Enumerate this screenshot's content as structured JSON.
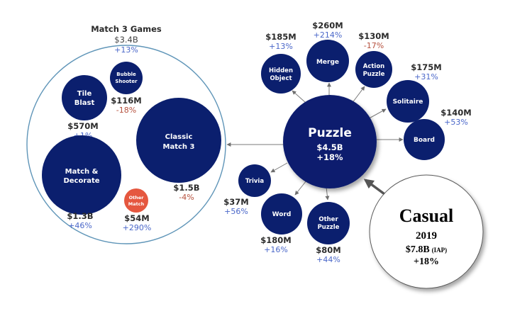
{
  "colors": {
    "bubble": "#0b1f6e",
    "highlight": "#e5573f",
    "link": "#8a8a8a",
    "group_outline": "#5f95b8",
    "positive": "#4a67c9",
    "negative": "#b6513e"
  },
  "match3": {
    "title": "Match 3 Games",
    "value": "$3.4B",
    "change": "+13%"
  },
  "bubbles": {
    "tile_blast": {
      "line1": "Tile",
      "line2": "Blast",
      "value": "$570M",
      "change": "+1%"
    },
    "bubble_shooter": {
      "line1": "Bubble",
      "line2": "Shooter",
      "value": "$116M",
      "change": "-18%"
    },
    "classic_match3": {
      "line1": "Classic",
      "line2": "Match 3",
      "value": "$1.5B",
      "change": "-4%"
    },
    "match_decorate": {
      "line1": "Match &",
      "line2": "Decorate",
      "value": "$1.3B",
      "change": "+46%"
    },
    "other_match": {
      "line1": "Other",
      "line2": "Match",
      "value": "$54M",
      "change": "+290%"
    },
    "hidden_object": {
      "line1": "Hidden",
      "line2": "Object",
      "value": "$185M",
      "change": "+13%"
    },
    "merge": {
      "label": "Merge",
      "value": "$260M",
      "change": "+214%"
    },
    "action_puzzle": {
      "line1": "Action",
      "line2": "Puzzle",
      "value": "$130M",
      "change": "-17%"
    },
    "solitaire": {
      "label": "Solitaire",
      "value": "$175M",
      "change": "+31%"
    },
    "board": {
      "label": "Board",
      "value": "$140M",
      "change": "+53%"
    },
    "trivia": {
      "label": "Trivia",
      "value": "$37M",
      "change": "+56%"
    },
    "word": {
      "label": "Word",
      "value": "$180M",
      "change": "+16%"
    },
    "other_puzzle": {
      "line1": "Other",
      "line2": "Puzzle",
      "value": "$80M",
      "change": "+44%"
    }
  },
  "puzzle": {
    "label": "Puzzle",
    "value": "$4.5B",
    "change": "+18%"
  },
  "casual": {
    "title": "Casual",
    "year": "2019",
    "value": "$7.8B",
    "value_note": "(IAP)",
    "change": "+18%"
  }
}
